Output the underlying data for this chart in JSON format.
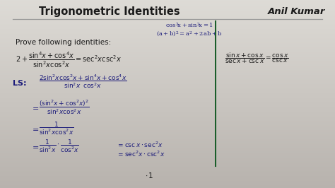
{
  "bg_top": "#d8d6d2",
  "bg_bottom": "#b8b4ae",
  "title": "Trigonometric Identities",
  "author": "Anil Kumar",
  "title_color": "#222222",
  "author_color": "#222222",
  "blue": "#1a1a7a",
  "black": "#1a1a1a",
  "green": "#1a5e2a",
  "gray_line": "#999999",
  "title_fontsize": 10.5,
  "author_fontsize": 9.5,
  "body_fontsize": 7.5,
  "small_fontsize": 6.0,
  "fig_width": 4.74,
  "fig_height": 2.66,
  "dpi": 100
}
